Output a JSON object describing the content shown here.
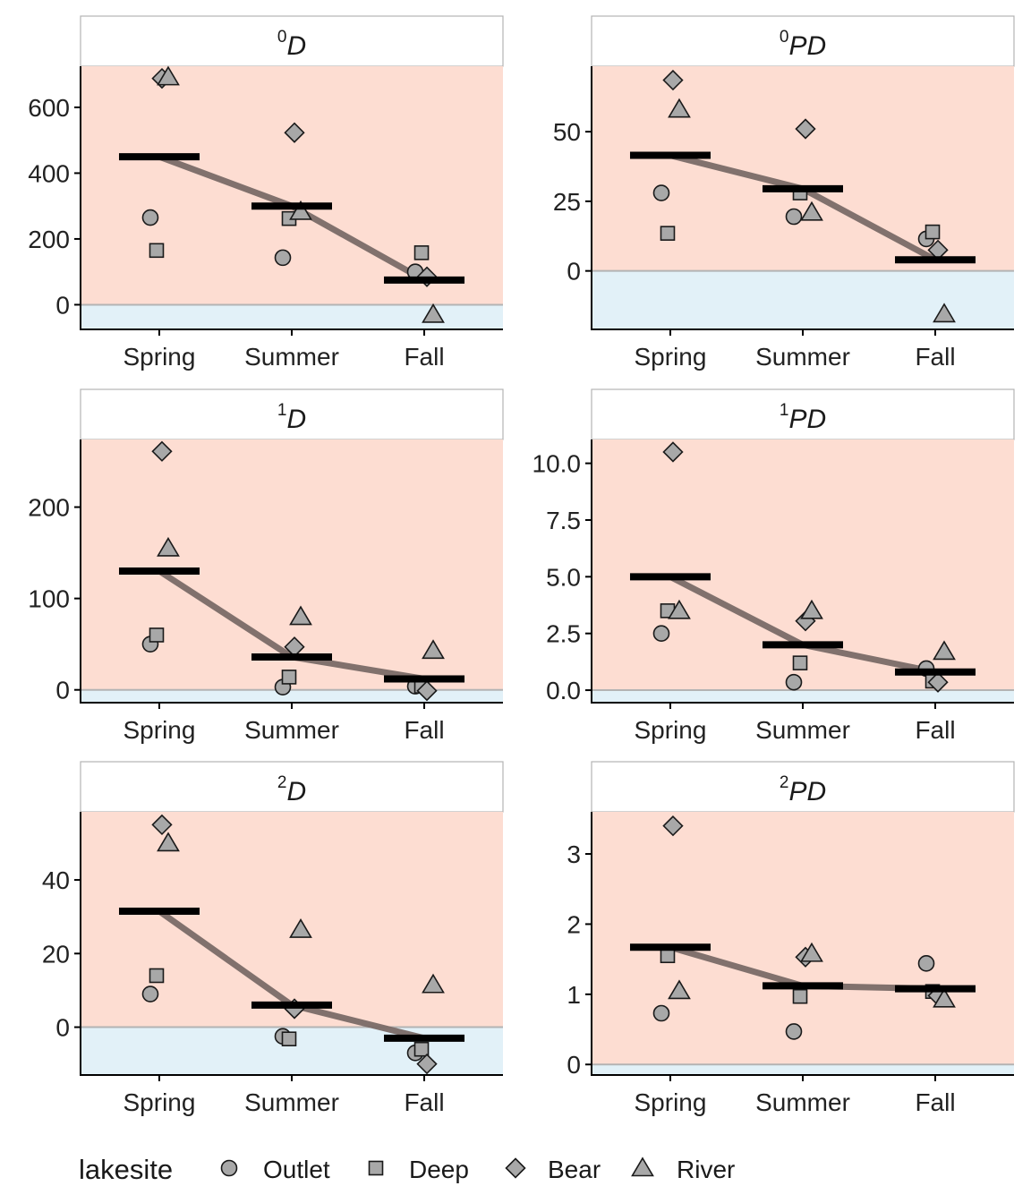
{
  "colors": {
    "positive_region": "#fdddd2",
    "negative_region": "#e2f1f8",
    "zero_line": "#b3b3b3",
    "trend_line": "#7a6a67",
    "mean_bar": "#000000",
    "point_fill": "#a8a8a8",
    "point_stroke": "#1a1a1a",
    "strip_fill": "#ffffff",
    "strip_border": "#b3b3b3",
    "axis": "#000000"
  },
  "legend": {
    "title": "lakesite",
    "entries": [
      {
        "label": "Outlet",
        "shape": "circle"
      },
      {
        "label": "Deep",
        "shape": "square"
      },
      {
        "label": "Bear",
        "shape": "diamond"
      },
      {
        "label": "River",
        "shape": "triangle"
      }
    ]
  },
  "chart_data": [
    {
      "type": "scatter",
      "title": "D",
      "title_superscript": "0",
      "categories": [
        "Spring",
        "Summer",
        "Fall"
      ],
      "ylim": [
        -75,
        725
      ],
      "yticks": [
        0,
        200,
        400,
        600
      ],
      "ytick_labels": [
        "0",
        "200",
        "400",
        "600"
      ],
      "means": [
        450,
        300,
        75
      ],
      "points": [
        {
          "lakesite": "Outlet",
          "x": "Spring",
          "y": 265
        },
        {
          "lakesite": "Deep",
          "x": "Spring",
          "y": 165
        },
        {
          "lakesite": "Bear",
          "x": "Spring",
          "y": 688
        },
        {
          "lakesite": "River",
          "x": "Spring",
          "y": 692
        },
        {
          "lakesite": "Outlet",
          "x": "Summer",
          "y": 143
        },
        {
          "lakesite": "Deep",
          "x": "Summer",
          "y": 262
        },
        {
          "lakesite": "Bear",
          "x": "Summer",
          "y": 523
        },
        {
          "lakesite": "River",
          "x": "Summer",
          "y": 283
        },
        {
          "lakesite": "Outlet",
          "x": "Fall",
          "y": 100
        },
        {
          "lakesite": "Deep",
          "x": "Fall",
          "y": 158
        },
        {
          "lakesite": "Bear",
          "x": "Fall",
          "y": 85
        },
        {
          "lakesite": "River",
          "x": "Fall",
          "y": -30
        }
      ]
    },
    {
      "type": "scatter",
      "title": "PD",
      "title_superscript": "0",
      "categories": [
        "Spring",
        "Summer",
        "Fall"
      ],
      "ylim": [
        -21,
        73.5
      ],
      "yticks": [
        0,
        25,
        50
      ],
      "ytick_labels": [
        "0",
        "25",
        "50"
      ],
      "means": [
        41.5,
        29.5,
        4
      ],
      "points": [
        {
          "lakesite": "Outlet",
          "x": "Spring",
          "y": 28
        },
        {
          "lakesite": "Deep",
          "x": "Spring",
          "y": 13.5
        },
        {
          "lakesite": "Bear",
          "x": "Spring",
          "y": 68.5
        },
        {
          "lakesite": "River",
          "x": "Spring",
          "y": 58
        },
        {
          "lakesite": "Outlet",
          "x": "Summer",
          "y": 19.5
        },
        {
          "lakesite": "Deep",
          "x": "Summer",
          "y": 28
        },
        {
          "lakesite": "Bear",
          "x": "Summer",
          "y": 51
        },
        {
          "lakesite": "River",
          "x": "Summer",
          "y": 21
        },
        {
          "lakesite": "Outlet",
          "x": "Fall",
          "y": 11.5
        },
        {
          "lakesite": "Deep",
          "x": "Fall",
          "y": 14
        },
        {
          "lakesite": "Bear",
          "x": "Fall",
          "y": 7.5
        },
        {
          "lakesite": "River",
          "x": "Fall",
          "y": -15.5
        }
      ]
    },
    {
      "type": "scatter",
      "title": "D",
      "title_superscript": "1",
      "categories": [
        "Spring",
        "Summer",
        "Fall"
      ],
      "ylim": [
        -14,
        274
      ],
      "yticks": [
        0,
        100,
        200
      ],
      "ytick_labels": [
        "0",
        "100",
        "200"
      ],
      "means": [
        130,
        36,
        12
      ],
      "points": [
        {
          "lakesite": "Outlet",
          "x": "Spring",
          "y": 50
        },
        {
          "lakesite": "Deep",
          "x": "Spring",
          "y": 60
        },
        {
          "lakesite": "Bear",
          "x": "Spring",
          "y": 261
        },
        {
          "lakesite": "River",
          "x": "Spring",
          "y": 155
        },
        {
          "lakesite": "Outlet",
          "x": "Summer",
          "y": 3
        },
        {
          "lakesite": "Deep",
          "x": "Summer",
          "y": 14
        },
        {
          "lakesite": "Bear",
          "x": "Summer",
          "y": 47
        },
        {
          "lakesite": "River",
          "x": "Summer",
          "y": 80
        },
        {
          "lakesite": "Outlet",
          "x": "Fall",
          "y": 4
        },
        {
          "lakesite": "Deep",
          "x": "Fall",
          "y": 4
        },
        {
          "lakesite": "Bear",
          "x": "Fall",
          "y": -1
        },
        {
          "lakesite": "River",
          "x": "Fall",
          "y": 43
        }
      ]
    },
    {
      "type": "scatter",
      "title": "PD",
      "title_superscript": "1",
      "categories": [
        "Spring",
        "Summer",
        "Fall"
      ],
      "ylim": [
        -0.55,
        11.05
      ],
      "yticks": [
        0,
        2.5,
        5,
        7.5,
        10
      ],
      "ytick_labels": [
        "0.0",
        "2.5",
        "5.0",
        "7.5",
        "10.0"
      ],
      "means": [
        5.0,
        2.0,
        0.8
      ],
      "points": [
        {
          "lakesite": "Outlet",
          "x": "Spring",
          "y": 2.5
        },
        {
          "lakesite": "Deep",
          "x": "Spring",
          "y": 3.5
        },
        {
          "lakesite": "Bear",
          "x": "Spring",
          "y": 10.5
        },
        {
          "lakesite": "River",
          "x": "Spring",
          "y": 3.5
        },
        {
          "lakesite": "Outlet",
          "x": "Summer",
          "y": 0.35
        },
        {
          "lakesite": "Deep",
          "x": "Summer",
          "y": 1.2
        },
        {
          "lakesite": "Bear",
          "x": "Summer",
          "y": 3.05
        },
        {
          "lakesite": "River",
          "x": "Summer",
          "y": 3.5
        },
        {
          "lakesite": "Outlet",
          "x": "Fall",
          "y": 0.95
        },
        {
          "lakesite": "Deep",
          "x": "Fall",
          "y": 0.4
        },
        {
          "lakesite": "Bear",
          "x": "Fall",
          "y": 0.35
        },
        {
          "lakesite": "River",
          "x": "Fall",
          "y": 1.7
        }
      ]
    },
    {
      "type": "scatter",
      "title": "D",
      "title_superscript": "2",
      "categories": [
        "Spring",
        "Summer",
        "Fall"
      ],
      "ylim": [
        -13,
        58.5
      ],
      "yticks": [
        0,
        20,
        40
      ],
      "ytick_labels": [
        "0",
        "20",
        "40"
      ],
      "means": [
        31.5,
        6,
        -3
      ],
      "points": [
        {
          "lakesite": "Outlet",
          "x": "Spring",
          "y": 9
        },
        {
          "lakesite": "Deep",
          "x": "Spring",
          "y": 14
        },
        {
          "lakesite": "Bear",
          "x": "Spring",
          "y": 55
        },
        {
          "lakesite": "River",
          "x": "Spring",
          "y": 50
        },
        {
          "lakesite": "Outlet",
          "x": "Summer",
          "y": -2.5
        },
        {
          "lakesite": "Deep",
          "x": "Summer",
          "y": -3.2
        },
        {
          "lakesite": "Bear",
          "x": "Summer",
          "y": 5
        },
        {
          "lakesite": "River",
          "x": "Summer",
          "y": 26.5
        },
        {
          "lakesite": "Outlet",
          "x": "Fall",
          "y": -7
        },
        {
          "lakesite": "Deep",
          "x": "Fall",
          "y": -6
        },
        {
          "lakesite": "Bear",
          "x": "Fall",
          "y": -10
        },
        {
          "lakesite": "River",
          "x": "Fall",
          "y": 11.5
        }
      ]
    },
    {
      "type": "scatter",
      "title": "PD",
      "title_superscript": "2",
      "categories": [
        "Spring",
        "Summer",
        "Fall"
      ],
      "ylim": [
        -0.15,
        3.6
      ],
      "yticks": [
        0,
        1,
        2,
        3
      ],
      "ytick_labels": [
        "0",
        "1",
        "2",
        "3"
      ],
      "means": [
        1.67,
        1.12,
        1.08
      ],
      "points": [
        {
          "lakesite": "Outlet",
          "x": "Spring",
          "y": 0.73
        },
        {
          "lakesite": "Deep",
          "x": "Spring",
          "y": 1.55
        },
        {
          "lakesite": "Bear",
          "x": "Spring",
          "y": 3.4
        },
        {
          "lakesite": "River",
          "x": "Spring",
          "y": 1.05
        },
        {
          "lakesite": "Outlet",
          "x": "Summer",
          "y": 0.47
        },
        {
          "lakesite": "Deep",
          "x": "Summer",
          "y": 0.97
        },
        {
          "lakesite": "Bear",
          "x": "Summer",
          "y": 1.53
        },
        {
          "lakesite": "River",
          "x": "Summer",
          "y": 1.58
        },
        {
          "lakesite": "Outlet",
          "x": "Fall",
          "y": 1.44
        },
        {
          "lakesite": "Deep",
          "x": "Fall",
          "y": 1.04
        },
        {
          "lakesite": "Bear",
          "x": "Fall",
          "y": 0.98
        },
        {
          "lakesite": "River",
          "x": "Fall",
          "y": 0.93
        }
      ]
    }
  ]
}
